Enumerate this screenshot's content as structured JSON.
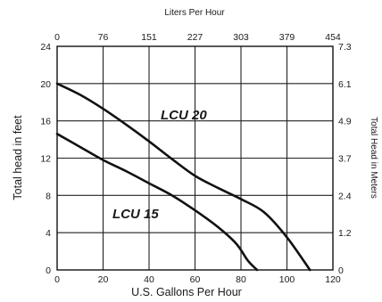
{
  "chart_data": {
    "type": "line",
    "xlabel": "U.S. Gallons Per Hour",
    "ylabel": "Total head in feet",
    "x2label": "Liters Per Hour",
    "y2label": "Total Head in Meters",
    "xlim": [
      0,
      120
    ],
    "ylim": [
      0,
      24
    ],
    "x_ticks": [
      0,
      20,
      40,
      60,
      80,
      100,
      120
    ],
    "y_ticks": [
      0,
      4,
      8,
      12,
      16,
      20,
      24
    ],
    "x2_ticks": [
      "0",
      "76",
      "151",
      "227",
      "303",
      "379",
      "454"
    ],
    "y2_ticks": [
      "0",
      "1.2",
      "2.4",
      "3.7",
      "4.9",
      "6.1",
      "7.3"
    ],
    "grid": true,
    "series": [
      {
        "name": "LCU 20",
        "x": [
          0,
          10,
          20,
          30,
          40,
          50,
          60,
          70,
          80,
          90,
          100,
          110
        ],
        "y": [
          20,
          18.8,
          17.3,
          15.6,
          13.8,
          11.9,
          10.1,
          8.8,
          7.6,
          6.2,
          3.5,
          0
        ]
      },
      {
        "name": "LCU 15",
        "x": [
          0,
          10,
          20,
          30,
          40,
          50,
          60,
          70,
          78,
          83,
          87
        ],
        "y": [
          14.6,
          13.2,
          11.8,
          10.6,
          9.3,
          8.0,
          6.4,
          4.6,
          2.8,
          1.0,
          0
        ]
      }
    ]
  }
}
